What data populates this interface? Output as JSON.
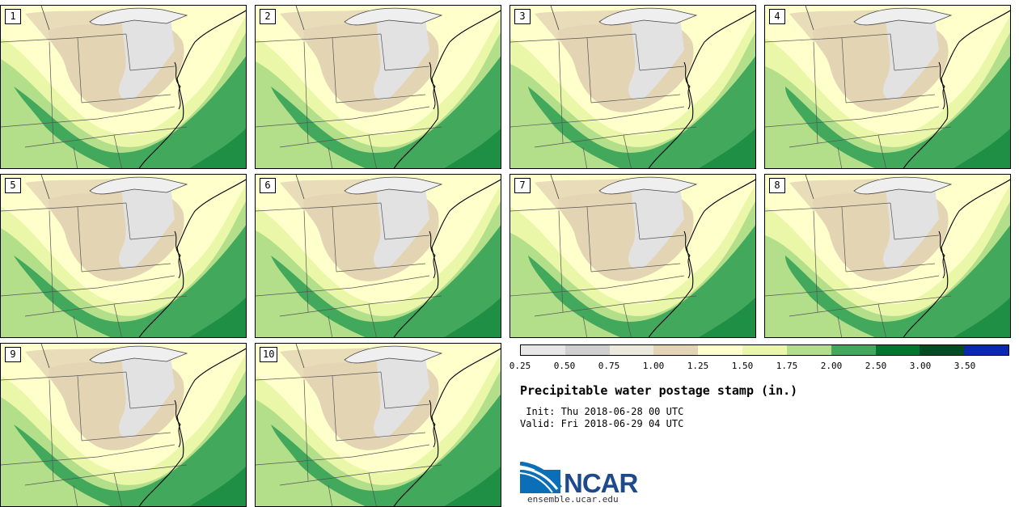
{
  "title": "Precipitable water postage stamp (in.)",
  "init": " Init: Thu 2018-06-28 00 UTC",
  "valid": "Valid: Fri 2018-06-29 04 UTC",
  "panels": [
    {
      "label": "1"
    },
    {
      "label": "2"
    },
    {
      "label": "3"
    },
    {
      "label": "4"
    },
    {
      "label": "5"
    },
    {
      "label": "6"
    },
    {
      "label": "7"
    },
    {
      "label": "8"
    },
    {
      "label": "9"
    },
    {
      "label": "10"
    }
  ],
  "colorbar": {
    "colors": [
      "#e6e6e6",
      "#cfcfcf",
      "#ebe8dc",
      "#e3d4b4",
      "#ffffcc",
      "#eaf7a8",
      "#b3df8a",
      "#41a85c",
      "#00762f",
      "#004d24",
      "#0a28b0"
    ],
    "ticks": [
      "0.25",
      "0.50",
      "0.75",
      "1.00",
      "1.25",
      "1.50",
      "1.75",
      "2.00",
      "2.50",
      "3.00",
      "3.50"
    ]
  },
  "logo": {
    "text": "NCAR",
    "url": "ensemble.ucar.edu"
  }
}
